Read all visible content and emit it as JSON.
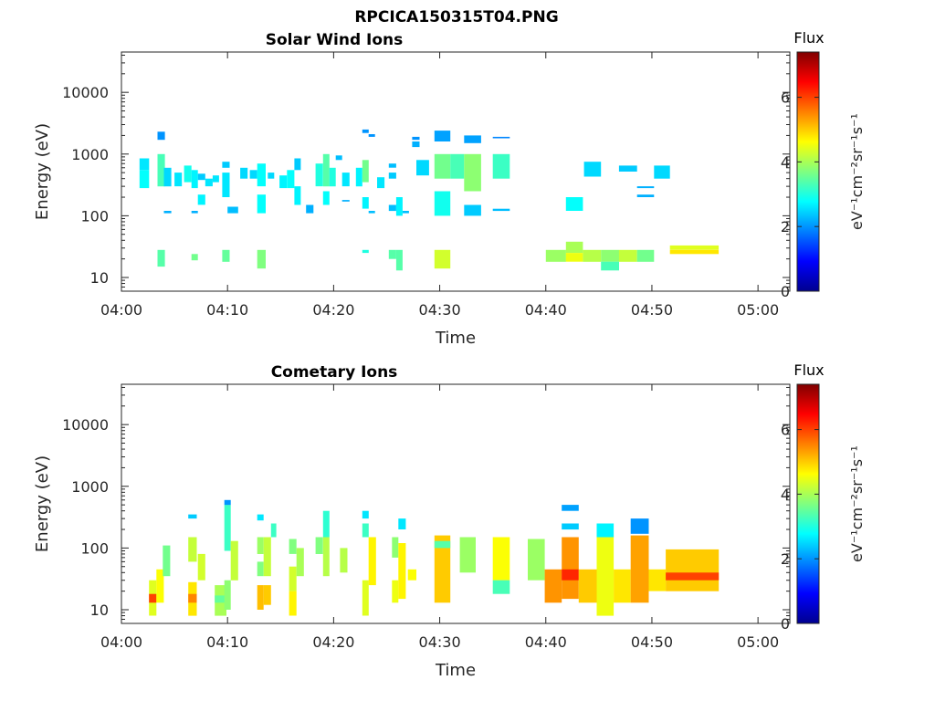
{
  "figure_title": "RPCICA150315T04.PNG",
  "colors": {
    "axis": "#262626",
    "background": "#ffffff"
  },
  "chart_data": [
    {
      "type": "heatmap",
      "title": "Solar Wind Ions",
      "xlabel": "Time",
      "ylabel": "Energy (eV)",
      "x_ticks": [
        "04:00",
        "04:10",
        "04:20",
        "04:30",
        "04:40",
        "04:50",
        "05:00"
      ],
      "x_range_minutes": [
        0,
        63
      ],
      "y_scale": "log",
      "y_ticks": [
        "10",
        "100",
        "1000",
        "10000"
      ],
      "ylim": [
        6,
        45000
      ],
      "colorbar": {
        "title": "Flux",
        "label": "eV⁻¹cm⁻²sr⁻¹s⁻¹",
        "range": [
          0,
          7.4
        ],
        "ticks": [
          "0",
          "2",
          "4",
          "6"
        ]
      },
      "cells": [
        [
          1.7,
          2.6,
          550,
          850,
          2.6
        ],
        [
          1.7,
          2.6,
          280,
          550,
          2.8
        ],
        [
          3.4,
          4.1,
          1700,
          2300,
          2.0
        ],
        [
          3.4,
          4.1,
          300,
          1000,
          3.3
        ],
        [
          3.4,
          4.1,
          15,
          28,
          3.4
        ],
        [
          4.0,
          4.7,
          110,
          120,
          2.2
        ],
        [
          4.0,
          4.7,
          300,
          600,
          2.5
        ],
        [
          5.0,
          5.7,
          300,
          500,
          2.6
        ],
        [
          5.9,
          6.6,
          350,
          650,
          2.9
        ],
        [
          6.6,
          7.2,
          110,
          120,
          2.2
        ],
        [
          6.6,
          7.2,
          280,
          550,
          2.7
        ],
        [
          6.6,
          7.2,
          19,
          24,
          3.6
        ],
        [
          7.2,
          7.9,
          150,
          220,
          2.7
        ],
        [
          7.2,
          7.9,
          380,
          480,
          2.4
        ],
        [
          7.9,
          8.6,
          300,
          400,
          2.6
        ],
        [
          8.6,
          9.2,
          350,
          450,
          2.6
        ],
        [
          9.5,
          10.2,
          200,
          500,
          2.6
        ],
        [
          9.5,
          10.2,
          600,
          750,
          2.4
        ],
        [
          9.5,
          10.2,
          18,
          28,
          3.5
        ],
        [
          10.0,
          11.0,
          110,
          140,
          2.3
        ],
        [
          11.2,
          11.9,
          400,
          600,
          2.5
        ],
        [
          12.1,
          12.8,
          400,
          550,
          2.5
        ],
        [
          12.8,
          13.6,
          300,
          700,
          2.8
        ],
        [
          12.8,
          13.6,
          110,
          220,
          2.8
        ],
        [
          12.8,
          13.6,
          14,
          28,
          3.7
        ],
        [
          13.8,
          14.4,
          400,
          500,
          2.5
        ],
        [
          14.9,
          15.6,
          280,
          450,
          2.7
        ],
        [
          15.6,
          16.3,
          280,
          550,
          2.8
        ],
        [
          16.3,
          16.9,
          150,
          300,
          2.7
        ],
        [
          16.3,
          16.9,
          550,
          850,
          2.4
        ],
        [
          17.4,
          18.1,
          110,
          150,
          2.2
        ],
        [
          18.3,
          19.0,
          300,
          700,
          3.0
        ],
        [
          19.0,
          19.6,
          300,
          1000,
          3.4
        ],
        [
          19.0,
          19.6,
          150,
          250,
          2.8
        ],
        [
          19.6,
          20.2,
          300,
          600,
          3.0
        ],
        [
          20.2,
          20.8,
          800,
          950,
          2.3
        ],
        [
          20.8,
          21.5,
          300,
          500,
          2.6
        ],
        [
          20.8,
          21.5,
          170,
          180,
          2.2
        ],
        [
          22.1,
          22.7,
          300,
          600,
          2.7
        ],
        [
          22.7,
          23.3,
          2200,
          2500,
          2.0
        ],
        [
          22.7,
          23.3,
          350,
          800,
          3.6
        ],
        [
          22.7,
          23.3,
          130,
          200,
          2.7
        ],
        [
          22.7,
          23.3,
          25,
          28,
          3.0
        ],
        [
          23.3,
          23.9,
          110,
          120,
          2.3
        ],
        [
          23.3,
          23.9,
          1900,
          2100,
          2.0
        ],
        [
          24.1,
          24.8,
          280,
          420,
          2.6
        ],
        [
          25.2,
          25.9,
          400,
          500,
          2.4
        ],
        [
          25.2,
          25.9,
          600,
          700,
          2.3
        ],
        [
          25.2,
          25.9,
          120,
          150,
          2.3
        ],
        [
          25.2,
          25.9,
          20,
          28,
          3.4
        ],
        [
          25.9,
          26.5,
          100,
          200,
          2.7
        ],
        [
          25.9,
          26.5,
          13,
          28,
          3.4
        ],
        [
          26.5,
          27.1,
          110,
          120,
          2.3
        ],
        [
          27.4,
          28.1,
          1300,
          1600,
          2.2
        ],
        [
          27.4,
          28.1,
          1700,
          1900,
          2.0
        ],
        [
          27.8,
          29.0,
          450,
          800,
          2.5
        ],
        [
          29.5,
          31.0,
          1600,
          2400,
          2.1
        ],
        [
          29.5,
          31.0,
          400,
          1000,
          3.6
        ],
        [
          29.5,
          31.0,
          100,
          250,
          2.9
        ],
        [
          29.5,
          31.0,
          14,
          28,
          4.3
        ],
        [
          31.0,
          32.3,
          400,
          1000,
          3.3
        ],
        [
          32.3,
          33.9,
          250,
          1000,
          3.8
        ],
        [
          32.3,
          33.9,
          1500,
          2000,
          2.1
        ],
        [
          32.3,
          33.9,
          100,
          150,
          2.4
        ],
        [
          35.0,
          36.6,
          400,
          1000,
          3.2
        ],
        [
          35.0,
          36.6,
          1800,
          1900,
          1.9
        ],
        [
          35.0,
          36.6,
          120,
          130,
          2.3
        ],
        [
          40.0,
          41.9,
          18,
          28,
          3.9
        ],
        [
          41.9,
          43.5,
          25,
          38,
          4.0
        ],
        [
          41.9,
          43.5,
          120,
          200,
          2.8
        ],
        [
          41.9,
          43.5,
          18,
          25,
          4.5
        ],
        [
          43.5,
          45.2,
          18,
          28,
          4.1
        ],
        [
          43.6,
          45.2,
          430,
          750,
          2.5
        ],
        [
          45.2,
          46.9,
          18,
          28,
          3.8
        ],
        [
          45.2,
          46.9,
          13,
          18,
          3.3
        ],
        [
          46.9,
          48.6,
          520,
          650,
          2.4
        ],
        [
          46.9,
          48.6,
          18,
          28,
          4.2
        ],
        [
          48.6,
          50.2,
          18,
          28,
          3.6
        ],
        [
          48.6,
          50.2,
          280,
          300,
          2.2
        ],
        [
          48.6,
          50.2,
          200,
          220,
          2.2
        ],
        [
          50.2,
          51.7,
          400,
          650,
          2.5
        ],
        [
          51.7,
          56.3,
          28,
          33,
          4.4
        ],
        [
          51.7,
          56.3,
          24,
          28,
          4.8
        ]
      ]
    },
    {
      "type": "heatmap",
      "title": "Cometary Ions",
      "xlabel": "Time",
      "ylabel": "Energy (eV)",
      "x_ticks": [
        "04:00",
        "04:10",
        "04:20",
        "04:30",
        "04:40",
        "04:50",
        "05:00"
      ],
      "x_range_minutes": [
        0,
        63
      ],
      "y_scale": "log",
      "y_ticks": [
        "10",
        "100",
        "1000",
        "10000"
      ],
      "ylim": [
        6,
        45000
      ],
      "colorbar": {
        "title": "Flux",
        "label": "eV⁻¹cm⁻²sr⁻¹s⁻¹",
        "range": [
          0,
          7.4
        ],
        "ticks": [
          "0",
          "2",
          "4",
          "6"
        ]
      },
      "cells": [
        [
          0,
          0,
          0,
          0,
          0
        ],
        [
          2.6,
          3.3,
          8,
          30,
          4.4
        ],
        [
          2.6,
          3.3,
          13,
          18,
          6.0
        ],
        [
          3.3,
          4.0,
          13,
          45,
          4.6
        ],
        [
          3.9,
          4.6,
          35,
          110,
          3.6
        ],
        [
          6.3,
          7.1,
          8,
          28,
          4.8
        ],
        [
          6.3,
          7.1,
          13,
          18,
          5.5
        ],
        [
          6.3,
          7.1,
          60,
          150,
          4.2
        ],
        [
          6.3,
          7.1,
          300,
          350,
          2.4
        ],
        [
          7.2,
          7.9,
          30,
          80,
          4.3
        ],
        [
          8.8,
          9.9,
          8,
          25,
          4.0
        ],
        [
          8.8,
          9.9,
          13,
          17,
          3.5
        ],
        [
          9.7,
          10.3,
          90,
          500,
          3.2
        ],
        [
          9.7,
          10.3,
          500,
          600,
          2.0
        ],
        [
          9.7,
          10.3,
          10,
          30,
          3.8
        ],
        [
          10.3,
          11.0,
          30,
          130,
          4.2
        ],
        [
          12.8,
          13.4,
          35,
          60,
          3.7
        ],
        [
          12.8,
          13.4,
          10,
          25,
          5.1
        ],
        [
          12.8,
          13.4,
          80,
          150,
          3.9
        ],
        [
          12.8,
          13.4,
          280,
          350,
          2.6
        ],
        [
          13.4,
          14.1,
          35,
          150,
          4.2
        ],
        [
          13.4,
          14.1,
          12,
          25,
          5.0
        ],
        [
          14.1,
          14.6,
          150,
          250,
          3.2
        ],
        [
          15.8,
          16.5,
          20,
          50,
          4.3
        ],
        [
          15.8,
          16.5,
          8,
          20,
          4.7
        ],
        [
          15.8,
          16.5,
          80,
          140,
          3.7
        ],
        [
          16.5,
          17.2,
          35,
          100,
          4.0
        ],
        [
          18.3,
          19.0,
          80,
          150,
          3.7
        ],
        [
          19.0,
          19.6,
          35,
          150,
          4.1
        ],
        [
          19.0,
          19.6,
          150,
          400,
          3.1
        ],
        [
          20.6,
          21.3,
          40,
          100,
          4.1
        ],
        [
          22.7,
          23.3,
          8,
          30,
          4.4
        ],
        [
          22.7,
          23.3,
          150,
          250,
          3.2
        ],
        [
          22.7,
          23.3,
          300,
          400,
          2.6
        ],
        [
          23.3,
          24.0,
          25,
          150,
          4.7
        ],
        [
          25.5,
          26.1,
          13,
          30,
          4.5
        ],
        [
          25.5,
          26.1,
          70,
          150,
          3.8
        ],
        [
          26.1,
          26.8,
          15,
          120,
          4.7
        ],
        [
          26.1,
          26.8,
          200,
          300,
          2.6
        ],
        [
          27.0,
          27.8,
          30,
          45,
          4.6
        ],
        [
          29.5,
          31.0,
          13,
          160,
          5.0
        ],
        [
          29.5,
          31.0,
          100,
          130,
          3.4
        ],
        [
          31.9,
          33.4,
          40,
          150,
          3.9
        ],
        [
          35.0,
          36.6,
          30,
          150,
          4.6
        ],
        [
          35.0,
          36.6,
          18,
          30,
          3.3
        ],
        [
          38.3,
          39.9,
          30,
          140,
          3.9
        ],
        [
          39.9,
          41.5,
          13,
          45,
          5.4
        ],
        [
          41.5,
          43.1,
          15,
          150,
          5.4
        ],
        [
          41.5,
          43.1,
          30,
          45,
          6.2
        ],
        [
          41.5,
          43.1,
          200,
          250,
          2.4
        ],
        [
          41.5,
          43.1,
          400,
          500,
          2.1
        ],
        [
          43.1,
          44.8,
          13,
          45,
          5.0
        ],
        [
          44.8,
          46.4,
          8,
          160,
          4.5
        ],
        [
          44.8,
          46.4,
          150,
          250,
          2.7
        ],
        [
          46.4,
          48.0,
          13,
          45,
          4.8
        ],
        [
          48.0,
          49.7,
          13,
          160,
          5.3
        ],
        [
          48.0,
          49.7,
          170,
          300,
          2.0
        ],
        [
          49.7,
          51.3,
          20,
          45,
          4.8
        ],
        [
          51.3,
          56.3,
          20,
          95,
          5.0
        ],
        [
          51.3,
          56.3,
          30,
          40,
          6.0
        ]
      ]
    }
  ]
}
